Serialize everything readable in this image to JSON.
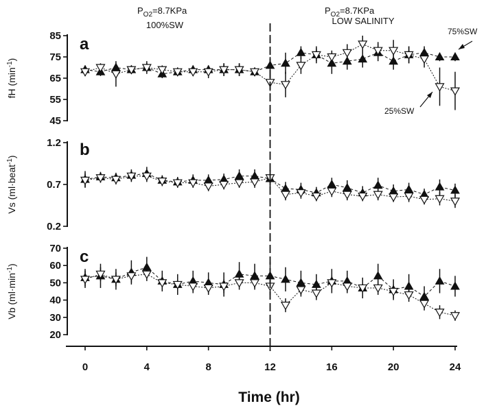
{
  "chart_data": [
    {
      "type": "line",
      "panel_letter": "a",
      "ylabel": "fH (min-1)",
      "ylabel_parts": [
        "fH (min",
        "-1",
        ")"
      ],
      "ylim": [
        45,
        85
      ],
      "yticks": [
        "85",
        "75",
        "65",
        "55",
        "45"
      ],
      "x": [
        0,
        1,
        2,
        3,
        4,
        5,
        6,
        7,
        8,
        9,
        10,
        11,
        12,
        13,
        14,
        15,
        16,
        17,
        18,
        19,
        20,
        21,
        22,
        23,
        24
      ],
      "series": [
        {
          "name": "75%SW",
          "marker": "filled-up-triangle",
          "values": [
            69,
            68,
            70,
            69,
            70,
            67,
            68,
            69,
            69,
            69,
            69,
            68,
            71,
            72,
            77,
            76,
            72,
            73,
            74,
            77,
            73,
            76,
            77,
            75,
            75
          ],
          "errors": [
            2,
            2,
            2,
            2,
            2,
            2,
            2,
            2,
            2,
            3,
            3,
            2,
            4,
            5,
            3,
            4,
            5,
            4,
            4,
            4,
            4,
            4,
            3,
            2,
            2
          ]
        },
        {
          "name": "25%SW",
          "marker": "open-down-triangle",
          "values": [
            68,
            70,
            67,
            69,
            70,
            69,
            68,
            68,
            68,
            69,
            69,
            68,
            63,
            62,
            71,
            76,
            75,
            77,
            81,
            78,
            78,
            76,
            74,
            61,
            59
          ],
          "errors": [
            2,
            2,
            6,
            2,
            3,
            2,
            2,
            2,
            3,
            3,
            3,
            2,
            4,
            6,
            4,
            3,
            3,
            4,
            4,
            4,
            5,
            4,
            4,
            9,
            9
          ]
        }
      ],
      "annotations": [
        "75%SW",
        "25%SW"
      ]
    },
    {
      "type": "line",
      "panel_letter": "b",
      "ylabel": "Vs (ml·beat-1)",
      "ylabel_parts": [
        "Vs (ml·beat",
        "-1",
        ")"
      ],
      "ylim": [
        0.2,
        1.2
      ],
      "yticks": [
        "1.2",
        "0.7",
        "0.2"
      ],
      "x": [
        0,
        1,
        2,
        3,
        4,
        5,
        6,
        7,
        8,
        9,
        10,
        11,
        12,
        13,
        14,
        15,
        16,
        17,
        18,
        19,
        20,
        21,
        22,
        23,
        24
      ],
      "series": [
        {
          "name": "75%SW",
          "marker": "filled-up-triangle",
          "values": [
            0.76,
            0.79,
            0.78,
            0.81,
            0.83,
            0.75,
            0.73,
            0.75,
            0.75,
            0.76,
            0.8,
            0.8,
            0.77,
            0.65,
            0.64,
            0.6,
            0.7,
            0.66,
            0.6,
            0.69,
            0.62,
            0.64,
            0.58,
            0.67,
            0.63
          ],
          "errors": [
            0.1,
            0.06,
            0.06,
            0.07,
            0.08,
            0.06,
            0.06,
            0.07,
            0.07,
            0.07,
            0.08,
            0.08,
            0.1,
            0.08,
            0.08,
            0.07,
            0.08,
            0.09,
            0.08,
            0.09,
            0.08,
            0.08,
            0.07,
            0.09,
            0.08
          ]
        },
        {
          "name": "25%SW",
          "marker": "open-down-triangle",
          "values": [
            0.75,
            0.78,
            0.76,
            0.8,
            0.8,
            0.74,
            0.72,
            0.72,
            0.68,
            0.7,
            0.72,
            0.73,
            0.78,
            0.58,
            0.6,
            0.56,
            0.62,
            0.58,
            0.56,
            0.58,
            0.55,
            0.56,
            0.52,
            0.53,
            0.5
          ],
          "errors": [
            0.08,
            0.06,
            0.06,
            0.07,
            0.07,
            0.06,
            0.06,
            0.06,
            0.06,
            0.06,
            0.06,
            0.07,
            0.09,
            0.07,
            0.07,
            0.06,
            0.07,
            0.07,
            0.06,
            0.07,
            0.06,
            0.07,
            0.06,
            0.08,
            0.08
          ]
        }
      ]
    },
    {
      "type": "line",
      "panel_letter": "c",
      "ylabel": "Vb (ml·min-1)",
      "ylabel_parts": [
        "Vb (ml·min",
        "-1",
        ")"
      ],
      "ylim": [
        20,
        70
      ],
      "yticks": [
        "70",
        "60",
        "50",
        "40",
        "30",
        "20"
      ],
      "xlim": [
        0,
        24
      ],
      "xticks": [
        "0",
        "4",
        "8",
        "12",
        "16",
        "20",
        "24"
      ],
      "xlabel": "Time (hr)",
      "x": [
        0,
        1,
        2,
        3,
        4,
        5,
        6,
        7,
        8,
        9,
        10,
        11,
        12,
        13,
        14,
        15,
        16,
        17,
        18,
        19,
        20,
        21,
        22,
        23,
        24
      ],
      "series": [
        {
          "name": "75%SW",
          "marker": "filled-up-triangle",
          "values": [
            53,
            54,
            52,
            56,
            59,
            51,
            49,
            51,
            50,
            49,
            55,
            54,
            54,
            52,
            50,
            49,
            51,
            51,
            47,
            54,
            46,
            48,
            42,
            51,
            48
          ],
          "errors": [
            5,
            7,
            6,
            7,
            6,
            6,
            6,
            6,
            6,
            7,
            7,
            7,
            8,
            7,
            7,
            6,
            7,
            6,
            6,
            7,
            6,
            7,
            6,
            7,
            6
          ]
        },
        {
          "name": "25%SW",
          "marker": "open-down-triangle",
          "values": [
            52,
            55,
            52,
            54,
            55,
            50,
            49,
            48,
            47,
            48,
            50,
            50,
            48,
            37,
            46,
            44,
            50,
            48,
            47,
            47,
            45,
            43,
            38,
            33,
            31
          ],
          "errors": [
            5,
            4,
            4,
            4,
            4,
            4,
            4,
            4,
            4,
            4,
            4,
            4,
            5,
            4,
            4,
            4,
            4,
            4,
            4,
            4,
            4,
            4,
            4,
            4,
            3
          ]
        }
      ]
    }
  ],
  "headers": {
    "left": {
      "po2_prefix": "P",
      "po2_sub": "O2",
      "po2_value": "=8.7KPa",
      "condition": "100%SW"
    },
    "right": {
      "po2_prefix": "P",
      "po2_sub": "O2",
      "po2_value": "=8.7KPa",
      "condition": "LOW SALINITY"
    }
  },
  "divider_x": 12
}
